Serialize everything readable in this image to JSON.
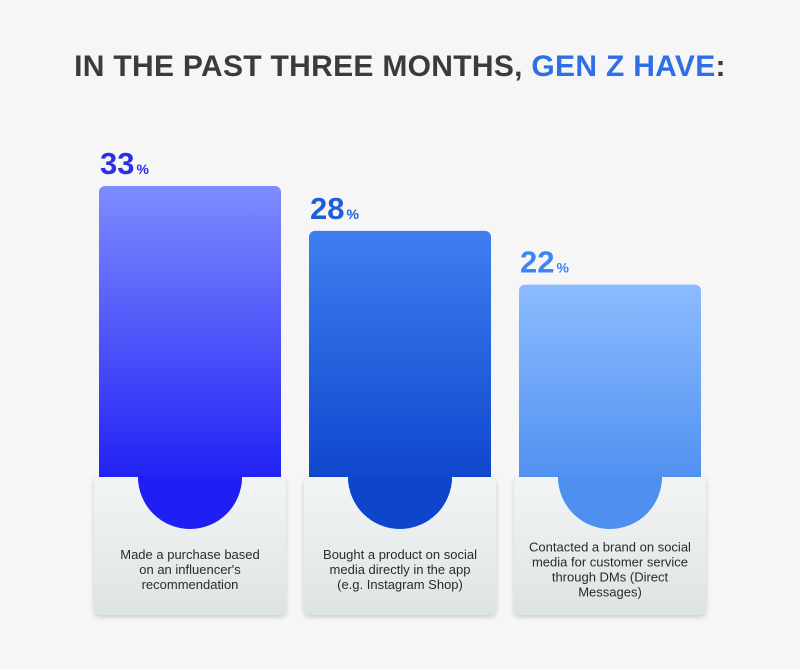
{
  "title": {
    "prefix": "IN THE PAST THREE MONTHS, ",
    "highlight": "GEN Z HAVE",
    "suffix": ":"
  },
  "colors": {
    "title_text": "#3b3b3b",
    "title_accent": "#2f6fe6",
    "background": "#f6f6f7"
  },
  "chart_data": {
    "type": "bar",
    "unit": "%",
    "ylim": [
      0,
      33
    ],
    "grid": false,
    "categories": [
      "Made a purchase based on an influencer's recommendation",
      "Bought a product on social media directly in the app (e.g. Instagram Shop)",
      "Contacted a brand on social media for customer service through DMs (Direct Messages)"
    ],
    "category_lines": [
      [
        "Made a purchase based",
        "on an influencer's",
        "recommendation"
      ],
      [
        "Bought a product on social",
        "media directly in the app",
        "(e.g. Instagram Shop)"
      ],
      [
        "Contacted a brand on social",
        "media for customer service",
        "through DMs (Direct",
        "Messages)"
      ]
    ],
    "values": [
      33,
      28,
      22
    ],
    "value_colors": [
      "#2a2ee8",
      "#1e5ed9",
      "#3d85f0"
    ],
    "bar_gradients": [
      [
        "#7d8cff",
        "#1f1ff3"
      ],
      [
        "#3f7ef0",
        "#0d45cc"
      ],
      [
        "#8cbcff",
        "#4f8ff0"
      ]
    ]
  }
}
